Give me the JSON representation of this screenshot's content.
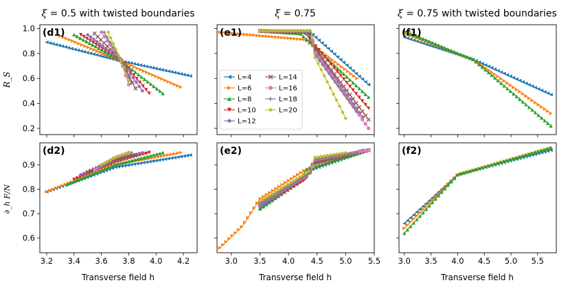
{
  "figure": {
    "column_titles": [
      {
        "pre": "ξ",
        "mid": " = 0.5",
        "post": " with twisted boundaries"
      },
      {
        "pre": "ξ",
        "mid": " = 0.75",
        "post": ""
      },
      {
        "pre": "ξ",
        "mid": " = 0.75",
        "post": " with twisted boundaries"
      }
    ],
    "row_ylabels": [
      "R_S",
      "∂_h F/N"
    ],
    "xlabel": "Transverse field h",
    "legend": [
      "L=4",
      "L=6",
      "L=8",
      "L=10",
      "L=12",
      "L=14",
      "L=16",
      "L=18",
      "L=20"
    ],
    "series_colors": [
      "#1f77b4",
      "#ff7f0e",
      "#2ca02c",
      "#d62728",
      "#9467bd",
      "#8c564b",
      "#e377c2",
      "#7f7f7f",
      "#bcbd22"
    ],
    "series_markers": [
      "tri-left",
      "tri-right",
      "tri-up",
      "tri-down",
      "pentagon",
      "x",
      "circle",
      "plus",
      "diamond"
    ]
  },
  "chart_data": [
    {
      "id": "d1",
      "label": "(d1)",
      "type": "line",
      "xlim": [
        3.15,
        4.3
      ],
      "ylim": [
        0.15,
        1.03
      ],
      "xticks": [
        3.2,
        3.4,
        3.6,
        3.8,
        4.0,
        4.2
      ],
      "yticks": [
        0.2,
        0.4,
        0.6,
        0.8,
        1.0
      ],
      "series": [
        {
          "name": "L=4",
          "x": [
            3.2,
            3.7,
            4.25
          ],
          "values": [
            0.89,
            0.75,
            0.62
          ]
        },
        {
          "name": "L=6",
          "x": [
            3.3,
            3.72,
            4.18
          ],
          "values": [
            0.94,
            0.75,
            0.53
          ]
        },
        {
          "name": "L=8",
          "x": [
            3.4,
            3.73,
            4.05
          ],
          "values": [
            0.95,
            0.75,
            0.48
          ]
        },
        {
          "name": "L=10",
          "x": [
            3.45,
            3.74,
            3.95
          ],
          "values": [
            0.95,
            0.75,
            0.48
          ]
        },
        {
          "name": "L=12",
          "x": [
            3.5,
            3.74,
            3.9
          ],
          "values": [
            0.95,
            0.75,
            0.5
          ]
        },
        {
          "name": "L=14",
          "x": [
            3.55,
            3.74,
            3.85
          ],
          "values": [
            0.96,
            0.75,
            0.52
          ]
        },
        {
          "name": "L=16",
          "x": [
            3.6,
            3.74,
            3.8
          ],
          "values": [
            0.97,
            0.75,
            0.55
          ]
        },
        {
          "name": "L=18",
          "x": [
            3.62,
            3.74,
            3.82
          ],
          "values": [
            0.97,
            0.75,
            0.56
          ]
        },
        {
          "name": "L=20",
          "x": [
            3.65,
            3.74,
            3.8
          ],
          "values": [
            0.97,
            0.75,
            0.58
          ]
        }
      ]
    },
    {
      "id": "e1",
      "label": "(e1)",
      "type": "line",
      "xlim": [
        2.75,
        5.5
      ],
      "ylim": [
        0.15,
        1.03
      ],
      "xticks": [
        3.0,
        3.5,
        4.0,
        4.5,
        5.0,
        5.5
      ],
      "yticks": [
        0.2,
        0.4,
        0.6,
        0.8,
        1.0
      ],
      "series": [
        {
          "name": "L=4",
          "x": [
            3.5,
            4.4,
            5.4
          ],
          "values": [
            0.98,
            0.96,
            0.55
          ]
        },
        {
          "name": "L=6",
          "x": [
            2.8,
            4.3,
            5.2
          ],
          "values": [
            0.97,
            0.91,
            0.6
          ]
        },
        {
          "name": "L=8",
          "x": [
            3.5,
            4.2,
            4.3,
            5.4
          ],
          "values": [
            0.98,
            0.96,
            0.92,
            0.45
          ]
        },
        {
          "name": "L=10",
          "x": [
            3.5,
            4.3,
            4.4,
            5.4
          ],
          "values": [
            0.98,
            0.97,
            0.9,
            0.36
          ]
        },
        {
          "name": "L=12",
          "x": [
            3.5,
            4.3,
            4.4,
            5.3
          ],
          "values": [
            0.98,
            0.97,
            0.88,
            0.29
          ]
        },
        {
          "name": "L=14",
          "x": [
            3.5,
            4.35,
            4.45,
            5.4
          ],
          "values": [
            0.98,
            0.97,
            0.85,
            0.27
          ]
        },
        {
          "name": "L=16",
          "x": [
            3.5,
            4.4,
            4.45,
            5.4
          ],
          "values": [
            0.98,
            0.98,
            0.82,
            0.2
          ]
        },
        {
          "name": "L=18",
          "x": [
            3.5,
            4.4,
            4.45,
            5.2
          ],
          "values": [
            0.98,
            0.98,
            0.8,
            0.33
          ]
        },
        {
          "name": "L=20",
          "x": [
            3.5,
            4.4,
            4.45,
            5.0
          ],
          "values": [
            0.98,
            0.98,
            0.78,
            0.28
          ]
        }
      ]
    },
    {
      "id": "f1",
      "label": "(f1)",
      "type": "line",
      "xlim": [
        2.9,
        5.85
      ],
      "ylim": [
        0.15,
        1.03
      ],
      "xticks": [
        3.0,
        3.5,
        4.0,
        4.5,
        5.0,
        5.5
      ],
      "yticks": [
        0.2,
        0.4,
        0.6,
        0.8,
        1.0
      ],
      "series": [
        {
          "name": "L=4",
          "x": [
            3.0,
            4.3,
            5.75
          ],
          "values": [
            0.93,
            0.75,
            0.47
          ]
        },
        {
          "name": "L=6",
          "x": [
            3.0,
            4.3,
            5.75
          ],
          "values": [
            0.96,
            0.75,
            0.32
          ]
        },
        {
          "name": "L=8",
          "x": [
            3.0,
            4.3,
            5.75
          ],
          "values": [
            0.98,
            0.75,
            0.22
          ]
        }
      ]
    },
    {
      "id": "d2",
      "label": "(d2)",
      "type": "line",
      "xlim": [
        3.15,
        4.3
      ],
      "ylim": [
        0.54,
        0.99
      ],
      "xticks": [
        3.2,
        3.4,
        3.6,
        3.8,
        4.0,
        4.2
      ],
      "yticks": [
        0.6,
        0.7,
        0.8,
        0.9
      ],
      "series": [
        {
          "name": "L=4",
          "x": [
            3.2,
            3.7,
            4.25
          ],
          "values": [
            0.79,
            0.89,
            0.94
          ]
        },
        {
          "name": "L=6",
          "x": [
            3.2,
            3.7,
            4.18
          ],
          "values": [
            0.79,
            0.9,
            0.95
          ]
        },
        {
          "name": "L=8",
          "x": [
            3.35,
            3.7,
            4.05
          ],
          "values": [
            0.82,
            0.9,
            0.95
          ]
        },
        {
          "name": "L=10",
          "x": [
            3.4,
            3.7,
            3.95
          ],
          "values": [
            0.84,
            0.91,
            0.95
          ]
        },
        {
          "name": "L=12",
          "x": [
            3.45,
            3.7,
            3.9
          ],
          "values": [
            0.86,
            0.92,
            0.95
          ]
        },
        {
          "name": "L=14",
          "x": [
            3.5,
            3.7,
            3.85
          ],
          "values": [
            0.87,
            0.92,
            0.94
          ]
        },
        {
          "name": "L=16",
          "x": [
            3.55,
            3.7,
            3.8
          ],
          "values": [
            0.88,
            0.93,
            0.95
          ]
        },
        {
          "name": "L=18",
          "x": [
            3.58,
            3.7,
            3.82
          ],
          "values": [
            0.89,
            0.93,
            0.95
          ]
        },
        {
          "name": "L=20",
          "x": [
            3.6,
            3.7,
            3.8
          ],
          "values": [
            0.9,
            0.93,
            0.95
          ]
        }
      ]
    },
    {
      "id": "e2",
      "label": "(e2)",
      "type": "line",
      "xlim": [
        2.75,
        5.5
      ],
      "ylim": [
        0.54,
        0.99
      ],
      "xticks": [
        3.0,
        3.5,
        4.0,
        4.5,
        5.0,
        5.5
      ],
      "yticks": [
        0.6,
        0.7,
        0.8,
        0.9
      ],
      "series": [
        {
          "name": "L=4",
          "x": [
            3.5,
            4.4,
            5.4
          ],
          "values": [
            0.72,
            0.88,
            0.96
          ]
        },
        {
          "name": "L=6",
          "x": [
            2.8,
            3.2,
            3.5,
            4.3,
            5.2
          ],
          "values": [
            0.56,
            0.65,
            0.76,
            0.88,
            0.95
          ]
        },
        {
          "name": "L=8",
          "x": [
            3.5,
            4.2,
            4.3,
            5.4
          ],
          "values": [
            0.72,
            0.83,
            0.88,
            0.96
          ]
        },
        {
          "name": "L=10",
          "x": [
            3.5,
            4.3,
            4.4,
            5.4
          ],
          "values": [
            0.73,
            0.84,
            0.9,
            0.96
          ]
        },
        {
          "name": "L=12",
          "x": [
            3.5,
            4.3,
            4.4,
            5.3
          ],
          "values": [
            0.73,
            0.85,
            0.9,
            0.96
          ]
        },
        {
          "name": "L=14",
          "x": [
            3.5,
            4.35,
            4.45,
            5.4
          ],
          "values": [
            0.74,
            0.86,
            0.91,
            0.96
          ]
        },
        {
          "name": "L=16",
          "x": [
            3.5,
            4.4,
            4.45,
            5.4
          ],
          "values": [
            0.74,
            0.87,
            0.92,
            0.96
          ]
        },
        {
          "name": "L=18",
          "x": [
            3.5,
            4.4,
            4.45,
            5.2
          ],
          "values": [
            0.74,
            0.87,
            0.92,
            0.95
          ]
        },
        {
          "name": "L=20",
          "x": [
            3.5,
            4.4,
            4.45,
            5.0
          ],
          "values": [
            0.75,
            0.88,
            0.93,
            0.95
          ]
        }
      ]
    },
    {
      "id": "f2",
      "label": "(f2)",
      "type": "line",
      "xlim": [
        2.9,
        5.85
      ],
      "ylim": [
        0.54,
        0.99
      ],
      "xticks": [
        3.0,
        3.5,
        4.0,
        4.5,
        5.0,
        5.5
      ],
      "yticks": [
        0.6,
        0.7,
        0.8,
        0.9
      ],
      "series": [
        {
          "name": "L=4",
          "x": [
            3.0,
            4.0,
            5.75
          ],
          "values": [
            0.66,
            0.86,
            0.96
          ]
        },
        {
          "name": "L=6",
          "x": [
            3.0,
            4.0,
            5.75
          ],
          "values": [
            0.64,
            0.86,
            0.97
          ]
        },
        {
          "name": "L=8",
          "x": [
            3.0,
            4.0,
            5.75
          ],
          "values": [
            0.62,
            0.86,
            0.97
          ]
        }
      ]
    }
  ]
}
